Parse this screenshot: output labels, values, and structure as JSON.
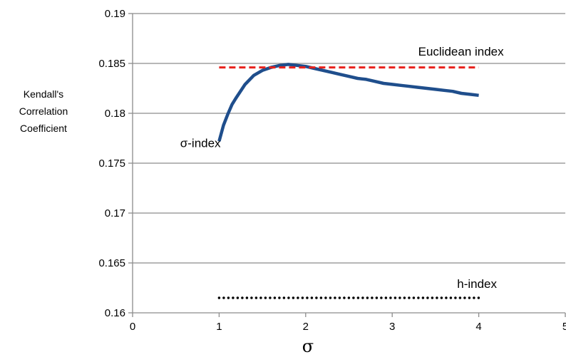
{
  "chart_data": {
    "type": "line",
    "title": "",
    "xlabel": "σ",
    "ylabel": [
      "Kendall's",
      "Correlation",
      "Coefficient"
    ],
    "xlim": [
      0,
      5
    ],
    "ylim": [
      0.16,
      0.19
    ],
    "x_ticks": [
      "0",
      "1",
      "2",
      "3",
      "4",
      "5"
    ],
    "y_ticks": [
      "0.16",
      "0.165",
      "0.17",
      "0.175",
      "0.18",
      "0.185",
      "0.19"
    ],
    "grid": "horizontal",
    "series": [
      {
        "name": "σ-index",
        "style": "solid",
        "color": "#1f4e8c",
        "x": [
          1.0,
          1.05,
          1.1,
          1.15,
          1.2,
          1.3,
          1.4,
          1.5,
          1.6,
          1.7,
          1.8,
          1.9,
          2.0,
          2.1,
          2.2,
          2.3,
          2.4,
          2.5,
          2.6,
          2.7,
          2.8,
          2.9,
          3.0,
          3.1,
          3.2,
          3.3,
          3.4,
          3.5,
          3.6,
          3.7,
          3.8,
          3.9,
          4.0
        ],
        "y": [
          0.1772,
          0.1788,
          0.1799,
          0.1809,
          0.1816,
          0.1829,
          0.1838,
          0.1843,
          0.1846,
          0.1848,
          0.1849,
          0.1848,
          0.1847,
          0.1845,
          0.1843,
          0.1841,
          0.1839,
          0.1837,
          0.1835,
          0.1834,
          0.1832,
          0.183,
          0.1829,
          0.1828,
          0.1827,
          0.1826,
          0.1825,
          0.1824,
          0.1823,
          0.1822,
          0.182,
          0.1819,
          0.1818
        ]
      },
      {
        "name": "Euclidean index",
        "style": "dashed",
        "color": "#e8211b",
        "x": [
          1.0,
          4.0
        ],
        "y": [
          0.1846,
          0.1846
        ]
      },
      {
        "name": "h-index",
        "style": "dotted",
        "color": "#000000",
        "x": [
          1.0,
          4.0
        ],
        "y": [
          0.1615,
          0.1615
        ]
      }
    ],
    "annotations": [
      {
        "text": "σ-index",
        "x": 0.55,
        "y": 0.1766
      },
      {
        "text": "Euclidean index",
        "x": 3.3,
        "y": 0.1858
      },
      {
        "text": "h-index",
        "x": 3.75,
        "y": 0.1625
      }
    ]
  }
}
